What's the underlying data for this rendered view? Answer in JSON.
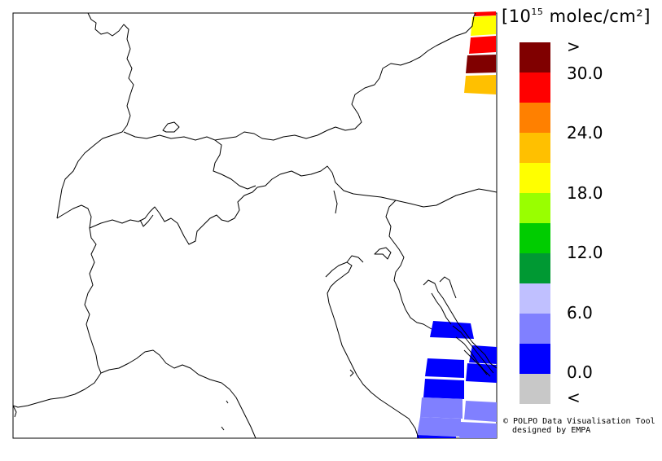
{
  "legend": {
    "unit_prefix": "[10",
    "unit_exp": "15",
    "unit_suffix": " molec/cm²]",
    "ticks": [
      ">",
      "30.0",
      "24.0",
      "18.0",
      "12.0",
      "6.0",
      "0.0",
      "<"
    ],
    "colors": [
      "#800000",
      "#ff0000",
      "#ff8000",
      "#ffc000",
      "#ffff00",
      "#99ff00",
      "#00cc00",
      "#009933",
      "#c0c0ff",
      "#8080ff",
      "#0000ff",
      "#c8c8c8"
    ]
  },
  "credit": {
    "line1": "© POLPO Data Visualisation Tool",
    "line2": "designed by EMPA"
  }
}
